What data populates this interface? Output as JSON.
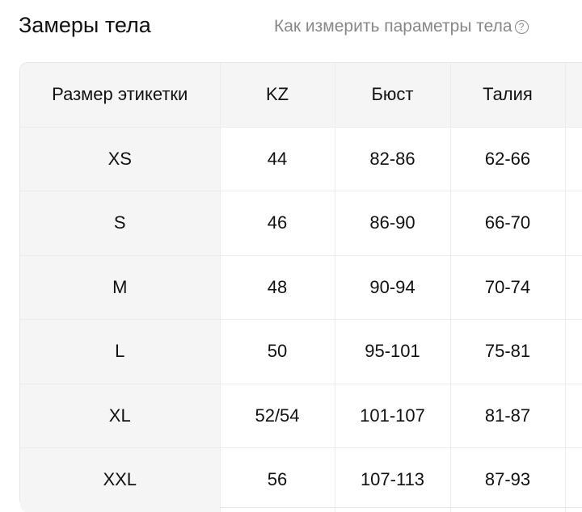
{
  "header": {
    "title": "Замеры тела",
    "help_link": "Как измерить параметры тела",
    "help_icon": "question-circle-icon"
  },
  "table": {
    "columns": [
      "Размер этикетки",
      "KZ",
      "Бюст",
      "Талия",
      ""
    ],
    "rows": [
      [
        "XS",
        "44",
        "82-86",
        "62-66",
        ""
      ],
      [
        "S",
        "46",
        "86-90",
        "66-70",
        ""
      ],
      [
        "M",
        "48",
        "90-94",
        "70-74",
        ""
      ],
      [
        "L",
        "50",
        "95-101",
        "75-81",
        ""
      ],
      [
        "XL",
        "52/54",
        "101-107",
        "81-87",
        ""
      ],
      [
        "XXL",
        "56",
        "107-113",
        "87-93",
        ""
      ]
    ]
  }
}
